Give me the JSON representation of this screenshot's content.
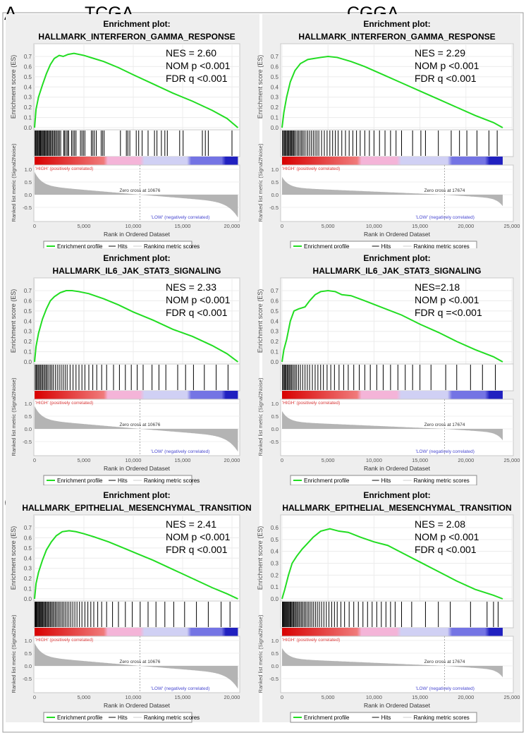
{
  "figure": {
    "col_labels": [
      "TCGA",
      "CGGA"
    ],
    "row_labels": [
      "A",
      "B",
      "C"
    ]
  },
  "common": {
    "title_prefix": "Enrichment plot:",
    "es_ylabel": "Enrichment score (ES)",
    "metric_ylabel": "Ranked list metric (Signal2Noise)",
    "xlabel": "Rank in Ordered Dataset",
    "high_label": "'HIGH' (positively correlated)",
    "low_label": "'LOW' (negatively correlated)",
    "legend": [
      "Enrichment profile",
      "Hits",
      "Ranking metric scores"
    ],
    "metric_ytick_labels": [
      "1.0",
      "0.5",
      "0.0",
      "-0.5"
    ],
    "colors": {
      "es_line": "#22dd22",
      "hits": "#000000",
      "metric_fill": "#b4b4b4",
      "high_text": "#e04040",
      "low_text": "#4848d0",
      "panel_bg": "#eeeeee",
      "colorbar": [
        "#d80000",
        "#f07a7a",
        "#f4b4d8",
        "#d0d0f4",
        "#7474e4",
        "#2020c0"
      ]
    }
  },
  "chart_data": [
    {
      "type": "line",
      "row": "A",
      "dataset": "TCGA",
      "gene_set": "HALLMARK_INTERFERON_GAMMA_RESPONSE",
      "stats": [
        "NES = 2.60",
        "NOM p <0.001",
        "FDR q <0.001"
      ],
      "xlim": [
        0,
        20800
      ],
      "xtick_labels": [
        "0",
        "5,000",
        "10,000",
        "15,000",
        "20,000"
      ],
      "es_ytick_labels": [
        "0.0",
        "0.1",
        "0.2",
        "0.3",
        "0.4",
        "0.5",
        "0.6",
        "0.7"
      ],
      "n_genes": 20600,
      "zero_cross": 10676,
      "zero_cross_label": "Zero cross at 10676",
      "metric_range": [
        0.9,
        -0.9
      ],
      "es_curve": [
        [
          0,
          0
        ],
        [
          150,
          0.18
        ],
        [
          400,
          0.3
        ],
        [
          800,
          0.42
        ],
        [
          1200,
          0.53
        ],
        [
          1600,
          0.62
        ],
        [
          2000,
          0.68
        ],
        [
          2500,
          0.71
        ],
        [
          2900,
          0.7
        ],
        [
          3400,
          0.72
        ],
        [
          4000,
          0.73
        ],
        [
          5000,
          0.71
        ],
        [
          6000,
          0.68
        ],
        [
          7000,
          0.65
        ],
        [
          8500,
          0.59
        ],
        [
          10000,
          0.52
        ],
        [
          12000,
          0.43
        ],
        [
          14000,
          0.34
        ],
        [
          16000,
          0.26
        ],
        [
          18000,
          0.17
        ],
        [
          19500,
          0.09
        ],
        [
          20600,
          0.0
        ]
      ],
      "hits": [
        40,
        120,
        200,
        280,
        360,
        450,
        530,
        610,
        700,
        780,
        870,
        960,
        1050,
        1140,
        1230,
        1330,
        1420,
        1520,
        1620,
        1720,
        1830,
        1940,
        2050,
        2160,
        2280,
        2400,
        2520,
        2650,
        2950,
        3050,
        3200,
        3350,
        3450,
        3750,
        3900,
        4050,
        4200,
        4650,
        4800,
        4950,
        5100,
        5750,
        5900,
        6050,
        6250,
        6750,
        6900,
        7050,
        8700,
        9300,
        9450,
        9650,
        10300,
        10550,
        10900,
        11500,
        12150,
        12400,
        12850,
        13200,
        13450,
        14700,
        15050,
        17000,
        17300,
        17600,
        20000
      ]
    },
    {
      "type": "line",
      "row": "A",
      "dataset": "CGGA",
      "gene_set": "HALLMARK_INTERFERON_GAMMA_RESPONSE",
      "stats": [
        "NES = 2.29",
        "NOM p <0.001",
        "FDR q <0.001"
      ],
      "xlim": [
        0,
        25000
      ],
      "xtick_labels": [
        "0",
        "5,000",
        "10,000",
        "15,000",
        "20,000",
        "25,000"
      ],
      "es_ytick_labels": [
        "0.0",
        "0.1",
        "0.2",
        "0.3",
        "0.4",
        "0.5",
        "0.6",
        "0.7"
      ],
      "n_genes": 24000,
      "zero_cross": 17674,
      "zero_cross_label": "Zero cross at 17674",
      "metric_range": [
        0.7,
        -0.45
      ],
      "es_curve": [
        [
          0,
          0
        ],
        [
          200,
          0.15
        ],
        [
          500,
          0.3
        ],
        [
          900,
          0.45
        ],
        [
          1400,
          0.56
        ],
        [
          2000,
          0.63
        ],
        [
          2800,
          0.67
        ],
        [
          3500,
          0.68
        ],
        [
          4200,
          0.69
        ],
        [
          5000,
          0.7
        ],
        [
          6000,
          0.69
        ],
        [
          7500,
          0.65
        ],
        [
          9000,
          0.6
        ],
        [
          11000,
          0.52
        ],
        [
          13000,
          0.44
        ],
        [
          15000,
          0.36
        ],
        [
          17000,
          0.28
        ],
        [
          19000,
          0.2
        ],
        [
          21000,
          0.12
        ],
        [
          23000,
          0.05
        ],
        [
          24000,
          0.0
        ]
      ],
      "hits": [
        50,
        150,
        250,
        350,
        450,
        550,
        650,
        750,
        850,
        950,
        1050,
        1150,
        1250,
        1350,
        1500,
        1650,
        1800,
        1950,
        2100,
        2250,
        2400,
        2600,
        2800,
        3000,
        3200,
        3400,
        3600,
        3800,
        4000,
        4300,
        4600,
        4900,
        5200,
        5500,
        5800,
        6100,
        6500,
        6900,
        7300,
        7700,
        8100,
        8500,
        9000,
        9500,
        10000,
        10600,
        11200,
        11800,
        12400,
        13000,
        14200,
        15100,
        15600,
        17000,
        18400,
        19300,
        20100,
        21200,
        22500,
        23400
      ]
    },
    {
      "type": "line",
      "row": "B",
      "dataset": "TCGA",
      "gene_set": "HALLMARK_IL6_JAK_STAT3_SIGNALING",
      "stats": [
        "NES = 2.33",
        "NOM p <0.001",
        "FDR q <0.001"
      ],
      "xlim": [
        0,
        20800
      ],
      "xtick_labels": [
        "0",
        "5,000",
        "10,000",
        "15,000",
        "20,000"
      ],
      "es_ytick_labels": [
        "0.0",
        "0.1",
        "0.2",
        "0.3",
        "0.4",
        "0.5",
        "0.6",
        "0.7"
      ],
      "n_genes": 20600,
      "zero_cross": 10676,
      "zero_cross_label": "Zero cross at 10676",
      "metric_range": [
        0.9,
        -0.9
      ],
      "es_curve": [
        [
          0,
          0
        ],
        [
          150,
          0.15
        ],
        [
          400,
          0.28
        ],
        [
          800,
          0.42
        ],
        [
          1200,
          0.52
        ],
        [
          1600,
          0.6
        ],
        [
          2000,
          0.64
        ],
        [
          2600,
          0.68
        ],
        [
          3200,
          0.7
        ],
        [
          3800,
          0.7
        ],
        [
          4500,
          0.69
        ],
        [
          5500,
          0.67
        ],
        [
          7000,
          0.62
        ],
        [
          8500,
          0.56
        ],
        [
          10000,
          0.49
        ],
        [
          12000,
          0.41
        ],
        [
          14000,
          0.32
        ],
        [
          16000,
          0.25
        ],
        [
          18000,
          0.16
        ],
        [
          19500,
          0.08
        ],
        [
          20600,
          0.0
        ]
      ],
      "hits": [
        60,
        160,
        260,
        370,
        480,
        590,
        700,
        820,
        940,
        1060,
        1180,
        1300,
        1450,
        1600,
        1750,
        1900,
        2100,
        2300,
        2500,
        2700,
        2900,
        3100,
        3300,
        3600,
        3900,
        4200,
        4500,
        4800,
        5100,
        5500,
        5900,
        6300,
        6800,
        7300,
        8000,
        8600,
        9200,
        9800,
        10400,
        11000,
        11900,
        12600,
        13300,
        14500,
        15300,
        16100,
        17200,
        18400,
        19600
      ]
    },
    {
      "type": "line",
      "row": "B",
      "dataset": "CGGA",
      "gene_set": "HALLMARK_IL6_JAK_STAT3_SIGNALING",
      "stats": [
        "NES=2.18",
        "NOM p <0.001",
        "FDR q =<0.001"
      ],
      "xlim": [
        0,
        25000
      ],
      "xtick_labels": [
        "0",
        "5,000",
        "10,000",
        "15,000",
        "20,000",
        "25,000"
      ],
      "es_ytick_labels": [
        "0.0",
        "0.1",
        "0.2",
        "0.3",
        "0.4",
        "0.5",
        "0.6",
        "0.7"
      ],
      "n_genes": 24000,
      "zero_cross": 17674,
      "zero_cross_label": "Zero cross at 17674",
      "metric_range": [
        0.7,
        -0.45
      ],
      "es_curve": [
        [
          0,
          0
        ],
        [
          200,
          0.12
        ],
        [
          500,
          0.22
        ],
        [
          900,
          0.4
        ],
        [
          1300,
          0.5
        ],
        [
          1800,
          0.52
        ],
        [
          2500,
          0.54
        ],
        [
          3000,
          0.6
        ],
        [
          3600,
          0.66
        ],
        [
          4200,
          0.69
        ],
        [
          5000,
          0.7
        ],
        [
          5800,
          0.69
        ],
        [
          6500,
          0.66
        ],
        [
          7500,
          0.65
        ],
        [
          9000,
          0.6
        ],
        [
          11000,
          0.53
        ],
        [
          13000,
          0.46
        ],
        [
          15000,
          0.37
        ],
        [
          17000,
          0.29
        ],
        [
          19000,
          0.2
        ],
        [
          21000,
          0.12
        ],
        [
          23000,
          0.05
        ],
        [
          24000,
          0.0
        ]
      ],
      "hits": [
        50,
        150,
        250,
        350,
        450,
        560,
        670,
        780,
        900,
        1020,
        1150,
        1300,
        1450,
        1600,
        1800,
        2000,
        2250,
        2500,
        2750,
        3000,
        3300,
        3600,
        3900,
        4200,
        4500,
        4900,
        5300,
        5700,
        6200,
        6700,
        7200,
        7800,
        8400,
        9000,
        9600,
        10300,
        11000,
        11800,
        12600,
        13400,
        14200,
        15000,
        16200,
        17800,
        19000,
        20500,
        21800,
        23200
      ]
    },
    {
      "type": "line",
      "row": "C",
      "dataset": "TCGA",
      "gene_set": "HALLMARK_EPITHELIAL_MESENCHYMAL_TRANSITION",
      "stats": [
        "NES = 2.41",
        "NOM p <0.001",
        "FDR q <0.001"
      ],
      "xlim": [
        0,
        20800
      ],
      "xtick_labels": [
        "0",
        "5,000",
        "10,000",
        "15,000",
        "20,000"
      ],
      "es_ytick_labels": [
        "0.0",
        "0.1",
        "0.2",
        "0.3",
        "0.4",
        "0.5",
        "0.6",
        "0.7"
      ],
      "n_genes": 20600,
      "zero_cross": 10676,
      "zero_cross_label": "Zero cross at 10676",
      "metric_range": [
        0.9,
        -0.9
      ],
      "es_curve": [
        [
          0,
          0
        ],
        [
          150,
          0.15
        ],
        [
          400,
          0.26
        ],
        [
          800,
          0.38
        ],
        [
          1200,
          0.48
        ],
        [
          1700,
          0.56
        ],
        [
          2200,
          0.62
        ],
        [
          2800,
          0.66
        ],
        [
          3500,
          0.67
        ],
        [
          4200,
          0.66
        ],
        [
          5000,
          0.64
        ],
        [
          6000,
          0.61
        ],
        [
          7500,
          0.56
        ],
        [
          9000,
          0.5
        ],
        [
          10500,
          0.44
        ],
        [
          12000,
          0.38
        ],
        [
          14000,
          0.29
        ],
        [
          16000,
          0.2
        ],
        [
          18000,
          0.11
        ],
        [
          19500,
          0.05
        ],
        [
          20600,
          0.0
        ]
      ],
      "hits": [
        40,
        110,
        180,
        260,
        340,
        420,
        500,
        580,
        660,
        740,
        830,
        920,
        1010,
        1100,
        1200,
        1300,
        1400,
        1510,
        1620,
        1730,
        1850,
        1970,
        2100,
        2230,
        2370,
        2510,
        2660,
        2810,
        2970,
        3130,
        3300,
        3480,
        3670,
        3870,
        4080,
        4300,
        4550,
        4800,
        5100,
        5400,
        5700,
        6000,
        6400,
        6800,
        7300,
        7900,
        8500,
        9200,
        9900,
        10700,
        11500,
        12300,
        13200,
        14100,
        15200,
        16400,
        17600,
        18900,
        19800
      ]
    },
    {
      "type": "line",
      "row": "C",
      "dataset": "CGGA",
      "gene_set": "HALLMARK_EPITHELIAL_MESENCHYMAL_TRANSITION",
      "stats": [
        "NES = 2.08",
        "NOM p <0.001",
        "FDR q <0.001"
      ],
      "xlim": [
        0,
        25000
      ],
      "xtick_labels": [
        "0",
        "5,000",
        "10,000",
        "15,000",
        "20,000",
        "25,000"
      ],
      "es_ytick_labels": [
        "0.0",
        "0.1",
        "0.2",
        "0.3",
        "0.4",
        "0.5",
        "0.6"
      ],
      "n_genes": 24000,
      "zero_cross": 17674,
      "zero_cross_label": "Zero cross at 17674",
      "metric_range": [
        0.7,
        -0.45
      ],
      "es_curve": [
        [
          0,
          0
        ],
        [
          300,
          0.08
        ],
        [
          700,
          0.2
        ],
        [
          1100,
          0.3
        ],
        [
          1600,
          0.36
        ],
        [
          2200,
          0.42
        ],
        [
          2800,
          0.47
        ],
        [
          3400,
          0.52
        ],
        [
          4200,
          0.57
        ],
        [
          5200,
          0.59
        ],
        [
          6200,
          0.57
        ],
        [
          7200,
          0.56
        ],
        [
          8500,
          0.52
        ],
        [
          10000,
          0.48
        ],
        [
          11500,
          0.45
        ],
        [
          13000,
          0.39
        ],
        [
          15000,
          0.31
        ],
        [
          17000,
          0.23
        ],
        [
          19000,
          0.15
        ],
        [
          21000,
          0.08
        ],
        [
          23000,
          0.03
        ],
        [
          24000,
          0.0
        ]
      ],
      "hits": [
        40,
        120,
        200,
        280,
        360,
        440,
        520,
        600,
        690,
        780,
        870,
        960,
        1060,
        1160,
        1260,
        1370,
        1480,
        1600,
        1720,
        1850,
        1980,
        2120,
        2260,
        2410,
        2560,
        2720,
        2890,
        3060,
        3240,
        3430,
        3630,
        3840,
        4060,
        4300,
        4550,
        4820,
        5100,
        5400,
        5700,
        6000,
        6400,
        6800,
        7300,
        7800,
        8300,
        8800,
        9300,
        9800,
        10300,
        10800,
        11300,
        11800,
        12300,
        13000,
        14100,
        15600,
        17000,
        18300,
        20500,
        22300,
        23000,
        23500
      ]
    }
  ]
}
